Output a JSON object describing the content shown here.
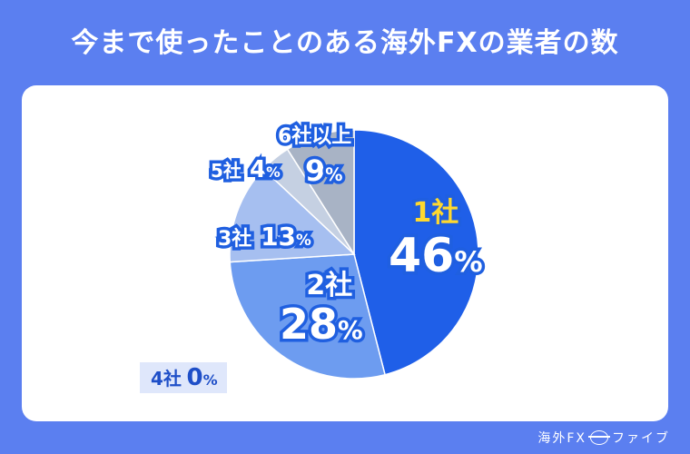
{
  "title": "今まで使ったことのある海外FXの業者の数",
  "footer": {
    "brand_left": "海外FX",
    "brand_right": "ファイブ",
    "logo_icon": "globe-icon"
  },
  "chart_data": {
    "type": "pie",
    "unit": "%",
    "slices": [
      {
        "name": "1社",
        "value": 46,
        "color": "#1f5fe8"
      },
      {
        "name": "2社",
        "value": 28,
        "color": "#6d9cf0"
      },
      {
        "name": "3社",
        "value": 13,
        "color": "#a6bff0"
      },
      {
        "name": "4社",
        "value": 0,
        "color": "#dfe7fb"
      },
      {
        "name": "5社",
        "value": 4,
        "color": "#c5d0e2"
      },
      {
        "name": "6社以上",
        "value": 9,
        "color": "#a8b3c5"
      }
    ]
  }
}
